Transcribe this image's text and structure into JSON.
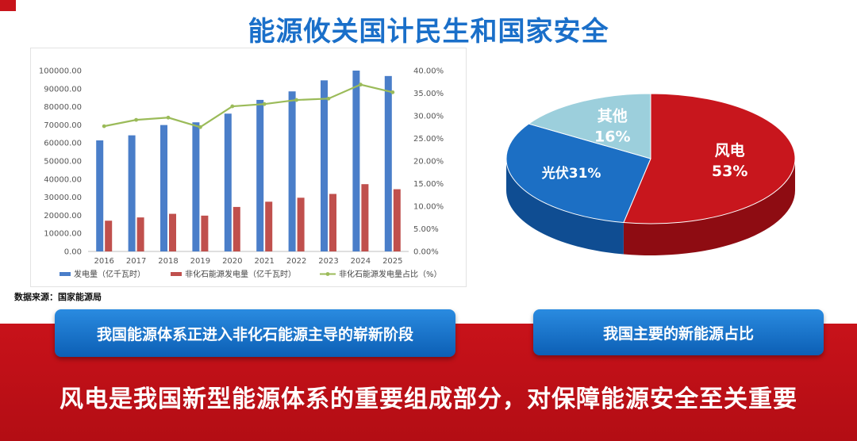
{
  "page": {
    "title": "能源攸关国计民生和国家安全",
    "source": "数据来源：国家能源局",
    "caption_left": "我国能源体系正进入非化石能源主导的崭新阶段",
    "caption_right": "我国主要的新能源占比",
    "headline": "风电是我国新型能源体系的重要组成部分，对保障能源安全至关重要"
  },
  "chart_data": [
    {
      "type": "bar",
      "categories": [
        "2016",
        "2017",
        "2018",
        "2019",
        "2020",
        "2021",
        "2022",
        "2023",
        "2024",
        "2025"
      ],
      "series": [
        {
          "name": "发电量（亿千瓦时）",
          "type": "bar",
          "axis": "left",
          "color": "#4a7ec9",
          "values": [
            61400,
            64200,
            69900,
            71400,
            76200,
            83800,
            88500,
            94600,
            100000,
            97000
          ]
        },
        {
          "name": "非化石能源发电量（亿千瓦时）",
          "type": "bar",
          "axis": "left",
          "color": "#c0504d",
          "values": [
            17000,
            18800,
            20800,
            19800,
            24600,
            27500,
            29700,
            31800,
            37200,
            34400
          ]
        },
        {
          "name": "非化石能源发电量占比（%）",
          "type": "line",
          "axis": "right",
          "color": "#9bbb59",
          "values": [
            27.7,
            29.1,
            29.6,
            27.5,
            32.1,
            32.6,
            33.5,
            33.8,
            36.9,
            35.2
          ]
        }
      ],
      "y_left": {
        "min": 0,
        "max": 100000,
        "step": 10000,
        "ticks": [
          "0.00",
          "10000.00",
          "20000.00",
          "30000.00",
          "40000.00",
          "50000.00",
          "60000.00",
          "70000.00",
          "80000.00",
          "90000.00",
          "100000.00"
        ]
      },
      "y_right": {
        "min": 0,
        "max": 40,
        "step": 5,
        "ticks": [
          "0.00%",
          "5.00%",
          "10.00%",
          "15.00%",
          "20.00%",
          "25.00%",
          "30.00%",
          "35.00%",
          "40.00%"
        ]
      },
      "legend": [
        "发电量（亿千瓦时）",
        "非化石能源发电量（亿千瓦时）",
        "非化石能源发电量占比（%）"
      ],
      "legend_position": "bottom",
      "grid": false
    },
    {
      "type": "pie",
      "style": "3d",
      "slices": [
        {
          "label": "风电",
          "value": 53,
          "value_label": "53%",
          "color": "#c8161d",
          "side": "#8e0c12"
        },
        {
          "label": "光伏",
          "value": 31,
          "value_label": "光伏31%",
          "color": "#1c6fc4",
          "side": "#0f4d92"
        },
        {
          "label": "其他",
          "value": 16,
          "value_label": "16%",
          "color": "#9ccfdc",
          "side": "#6fa9b8"
        }
      ],
      "legend_position": "none"
    }
  ]
}
